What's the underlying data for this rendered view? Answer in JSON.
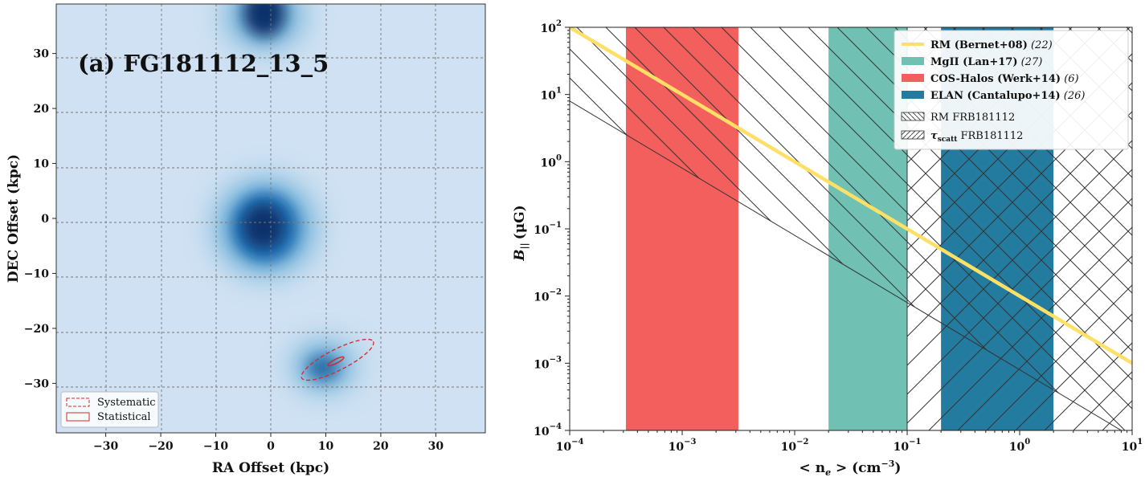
{
  "chart_data": [
    {
      "type": "heatmap",
      "title": "(a) FG181112_13_5",
      "xlabel": "RA Offset (kpc)",
      "ylabel": "DEC Offset (kpc)",
      "xlim": [
        -39,
        39
      ],
      "ylim": [
        -39,
        39
      ],
      "xticks": [
        -30,
        -20,
        -10,
        0,
        10,
        20,
        30
      ],
      "yticks": [
        30,
        20,
        10,
        0,
        -10,
        -20,
        -30
      ],
      "grid": true,
      "sources": [
        {
          "x": -1,
          "y": 37,
          "peak": 1.0
        },
        {
          "x": -1,
          "y": 0,
          "peak": 1.0
        },
        {
          "x": 10,
          "y": -27,
          "peak": 0.75
        }
      ],
      "ellipses": [
        {
          "label": "Systematic",
          "style": "dashed",
          "cx": 12.5,
          "cy": -26.5,
          "rx": 11,
          "ry": 2.6,
          "angle_deg": 27
        },
        {
          "label": "Statistical",
          "style": "solid",
          "cx": 12.3,
          "cy": -26.3,
          "rx": 2.4,
          "ry": 0.55,
          "angle_deg": 27
        }
      ],
      "legend": {
        "position": "lower-left",
        "entries": [
          "Systematic",
          "Statistical"
        ]
      }
    },
    {
      "type": "area",
      "xlabel": "< n_e > (cm^-3)",
      "ylabel": "B_|| (μG)",
      "xscale": "log",
      "yscale": "log",
      "xlim": [
        0.0001,
        10
      ],
      "ylim": [
        0.0001,
        100
      ],
      "xtick_labels": [
        "10",
        "10",
        "10",
        "10",
        "10",
        "10"
      ],
      "xtick_exponents": [
        "−4",
        "−3",
        "−2",
        "−1",
        "0",
        "1"
      ],
      "ytick_labels": [
        "10",
        "10",
        "10",
        "10",
        "10",
        "10",
        "10"
      ],
      "ytick_exponents": [
        "2",
        "1",
        "0",
        "−1",
        "−2",
        "−3",
        "−4"
      ],
      "bands": [
        {
          "name": "COS-Halos (Werk+14)",
          "cite": "(6)",
          "x_range": [
            0.000316,
            0.00316
          ],
          "color": "#F25F5C"
        },
        {
          "name": "MgII (Lan+17)",
          "cite": "(27)",
          "x_range": [
            0.02,
            0.1
          ],
          "color": "#70C1B3"
        },
        {
          "name": "ELAN (Cantalupo+14)",
          "cite": "(26)",
          "x_range": [
            0.2,
            2.0
          ],
          "color": "#247BA0"
        }
      ],
      "series": [
        {
          "name": "RM (Bernet+08)",
          "cite": "(22)",
          "color": "#FFE066",
          "x": [
            0.0001,
            10
          ],
          "y": [
            100,
            0.001
          ]
        }
      ],
      "hatched_regions": [
        {
          "name": "RM FRB181112",
          "hatch": "\\",
          "lower_boundary": {
            "x": [
              0.0001,
              10
            ],
            "y": [
              8,
              8e-05
            ]
          }
        },
        {
          "name": "τ_scatt FRB181112",
          "hatch": "/",
          "x_min": 0.1
        }
      ],
      "legend": {
        "position": "upper-right"
      }
    }
  ],
  "legend_labels": {
    "rm": "RM (Bernet+08)",
    "rm_cite": "(22)",
    "mgii": "MgII (Lan+17)",
    "mgii_cite": "(27)",
    "cos": "COS-Halos (Werk+14)",
    "cos_cite": "(6)",
    "elan": "ELAN (Cantalupo+14)",
    "elan_cite": "(26)",
    "rmfrb": "RM FRB181112",
    "tau_main": "τ",
    "tau_sub": "scatt",
    "tau_rest": "FRB181112"
  },
  "left_legend": {
    "systematic": "Systematic",
    "statistical": "Statistical"
  },
  "right_axis": {
    "ylabel_main": "B",
    "ylabel_sub": "||",
    "ylabel_unit": "(μG)",
    "xlabel_main": "< n",
    "xlabel_sub": "e",
    "xlabel_mid": " > (cm",
    "xlabel_sup": "−3",
    "xlabel_end": ")"
  },
  "colors": {
    "rm": "#FFE066",
    "mgii": "#70C1B3",
    "cos": "#F25F5C",
    "elan": "#247BA0",
    "map_bg": "#cfe1f2",
    "map_peak": "#08306b",
    "ellipse": "#d62728"
  }
}
